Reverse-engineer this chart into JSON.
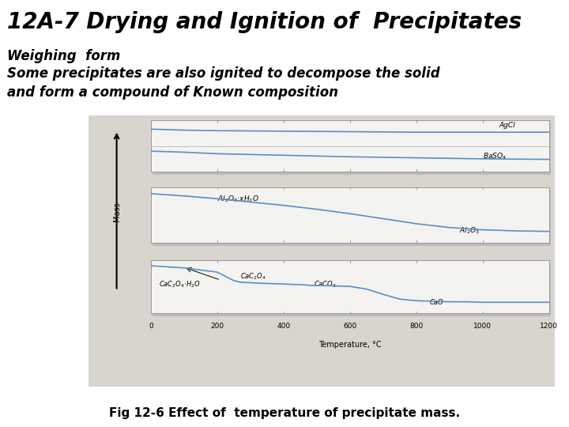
{
  "title": "12A-7 Drying and Ignition of  Precipitates",
  "subtitle": "Weighing  form",
  "body_text_line1": "Some precipitates are also ignited to decompose the solid",
  "body_text_line2": "and form a compound of Known composition",
  "caption": "Fig 12-6 Effect of  temperature of precipitate mass.",
  "bg_color": "#ffffff",
  "chart_bg": "#d8d4ce",
  "panel_bg": "#f5f3f0",
  "line_color": "#5b8fc4",
  "title_fontsize": 20,
  "subtitle_fontsize": 12,
  "body_fontsize": 12,
  "caption_fontsize": 11,
  "x_ticks": [
    0,
    200,
    400,
    600,
    800,
    1000,
    1200
  ],
  "agcl_x": [
    0,
    100,
    200,
    400,
    600,
    800,
    1000,
    1200
  ],
  "agcl_y": [
    0.83,
    0.81,
    0.8,
    0.79,
    0.78,
    0.77,
    0.77,
    0.77
  ],
  "baso4_x": [
    0,
    100,
    200,
    400,
    600,
    800,
    1000,
    1200
  ],
  "baso4_y": [
    0.4,
    0.38,
    0.35,
    0.32,
    0.29,
    0.27,
    0.25,
    0.24
  ],
  "al_x": [
    0,
    100,
    200,
    300,
    400,
    500,
    600,
    700,
    800,
    900,
    1000,
    1100,
    1200
  ],
  "al_y": [
    0.88,
    0.84,
    0.79,
    0.73,
    0.67,
    0.6,
    0.52,
    0.43,
    0.34,
    0.27,
    0.23,
    0.21,
    0.2
  ],
  "ca_x": [
    0,
    50,
    100,
    200,
    250,
    270,
    330,
    380,
    420,
    460,
    480,
    550,
    600,
    650,
    700,
    750,
    800,
    850,
    900,
    950,
    1000,
    1100,
    1200
  ],
  "ca_y": [
    0.9,
    0.88,
    0.86,
    0.78,
    0.62,
    0.59,
    0.57,
    0.56,
    0.55,
    0.54,
    0.53,
    0.52,
    0.51,
    0.46,
    0.36,
    0.27,
    0.24,
    0.23,
    0.22,
    0.22,
    0.21,
    0.21,
    0.21
  ]
}
